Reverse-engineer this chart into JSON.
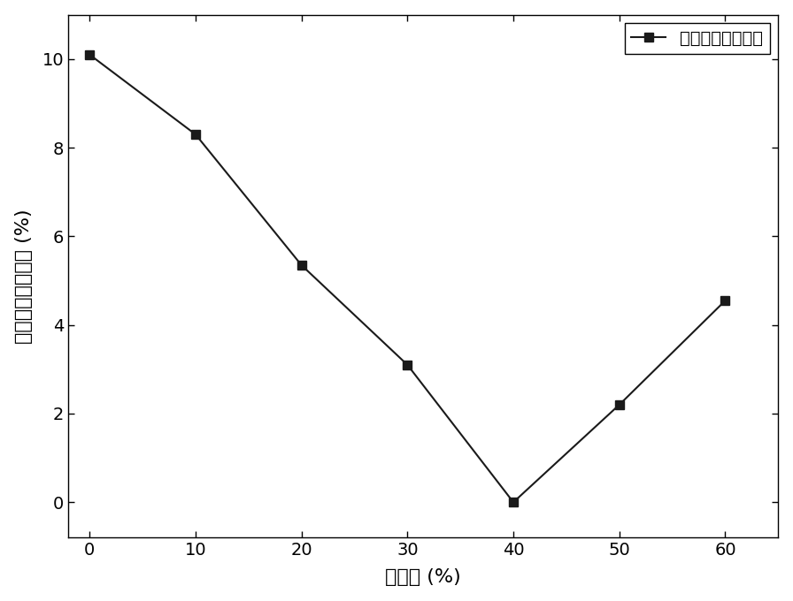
{
  "x": [
    0,
    10,
    20,
    30,
    40,
    50,
    60
  ],
  "y": [
    10.1,
    8.3,
    5.35,
    3.1,
    0.0,
    2.2,
    4.55
  ],
  "xlabel": "变形量 (%)",
  "ylabel": "岛状组织体积分数 (%)",
  "legend_label": "岛状组织体积分数",
  "xlim": [
    -2,
    65
  ],
  "ylim": [
    -0.8,
    11
  ],
  "xticks": [
    0,
    10,
    20,
    30,
    40,
    50,
    60
  ],
  "yticks": [
    0,
    2,
    4,
    6,
    8,
    10
  ],
  "line_color": "#1a1a1a",
  "marker": "s",
  "marker_size": 7,
  "marker_color": "#1a1a1a",
  "line_width": 1.5,
  "background_color": "#ffffff",
  "font_size_label": 16,
  "font_size_tick": 14,
  "font_size_legend": 14
}
